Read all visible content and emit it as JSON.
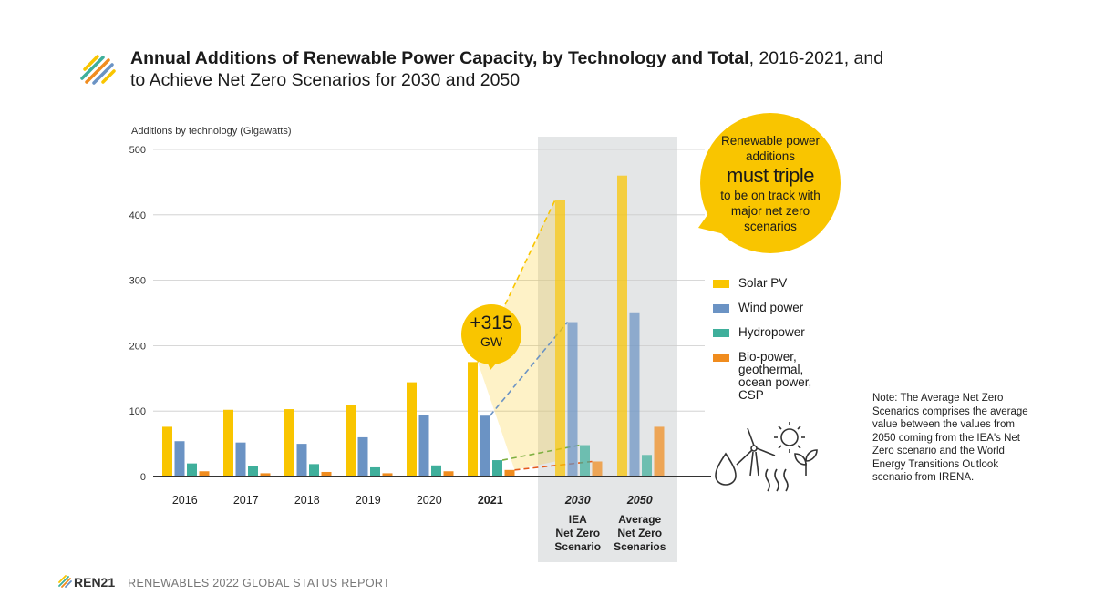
{
  "title": {
    "bold": "Annual Additions of Renewable Power Capacity, by Technology and Total",
    "normal": ", 2016-2021, and to Achieve Net Zero Scenarios for 2030 and 2050"
  },
  "footer": {
    "brand": "REN21",
    "report": "RENEWABLES 2022 GLOBAL STATUS REPORT"
  },
  "callout": {
    "line1": "Renewable power additions",
    "emphasis": "must triple",
    "line2": "to be on track with major net zero scenarios"
  },
  "bubble": {
    "value": "+315",
    "unit": "GW"
  },
  "note": "Note: The Average Net Zero Scenarios comprises the average value between the values from 2050 coming from the IEA's Net Zero scenario and the World Energy Transitions Outlook scenario from IRENA.",
  "colors": {
    "solar": "#F9C500",
    "wind": "#6B93C4",
    "hydro": "#3FAF9B",
    "bio": "#F08C1E",
    "scenario_bg": "#E4E6E7",
    "grid": "#cccccc",
    "axis": "#333333"
  },
  "chart_data": {
    "type": "bar",
    "ylabel": "Additions by technology (Gigawatts)",
    "ylim": [
      0,
      500
    ],
    "yticks": [
      0,
      100,
      200,
      300,
      400,
      500
    ],
    "grid": true,
    "legend_position": "right",
    "categories": [
      "2016",
      "2017",
      "2018",
      "2019",
      "2020",
      "2021",
      "2030",
      "2050"
    ],
    "category_sublabels": [
      "",
      "",
      "",
      "",
      "",
      "",
      "IEA Net Zero Scenario",
      "Average Net Zero Scenarios"
    ],
    "series": [
      {
        "name": "Solar PV",
        "color": "#F9C500",
        "values": [
          76,
          102,
          103,
          110,
          144,
          175,
          423,
          460
        ]
      },
      {
        "name": "Wind power",
        "color": "#6B93C4",
        "values": [
          54,
          52,
          50,
          60,
          94,
          93,
          236,
          251
        ]
      },
      {
        "name": "Hydropower",
        "color": "#3FAF9B",
        "values": [
          20,
          16,
          19,
          14,
          17,
          25,
          48,
          33
        ]
      },
      {
        "name": "Bio-power, geothermal, ocean power, CSP",
        "color": "#F08C1E",
        "values": [
          8,
          5,
          7,
          5,
          8,
          10,
          23,
          76
        ]
      }
    ],
    "annotations": [
      "+315 GW",
      "must triple"
    ]
  }
}
